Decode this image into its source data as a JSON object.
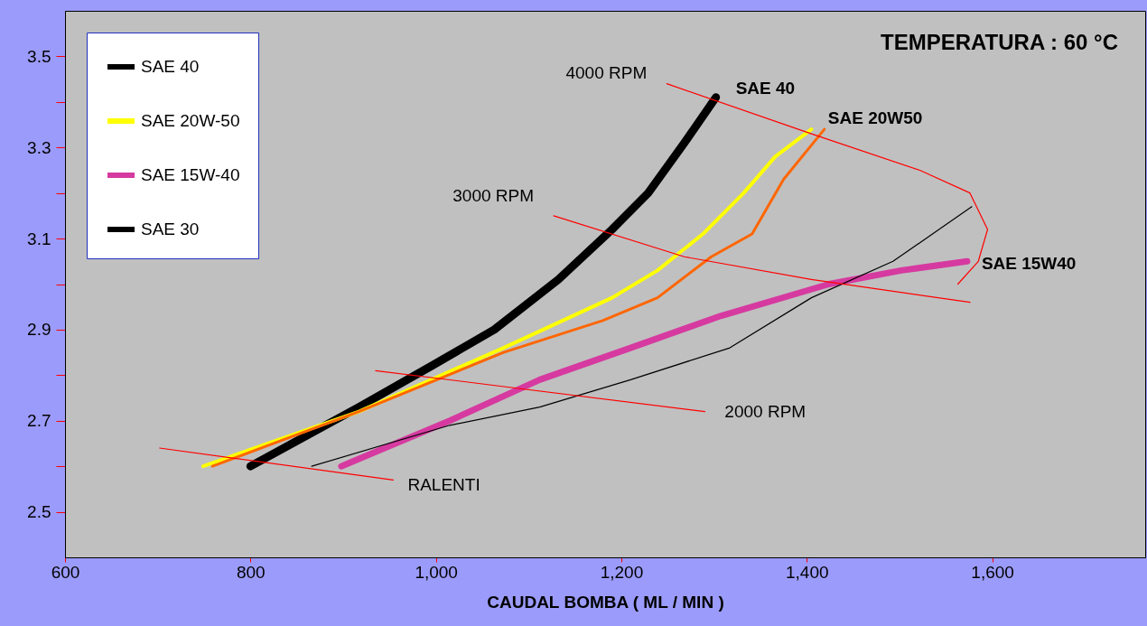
{
  "chart_data": {
    "type": "line",
    "title": "TEMPERATURA : 60 °C",
    "xlabel": "CAUDAL BOMBA ( ML / MIN )",
    "xlim": [
      600,
      1765
    ],
    "ylim": [
      2.4,
      3.6
    ],
    "xticks": [
      600,
      800,
      {
        "value": 1000,
        "label": "1,000"
      },
      {
        "value": 1200,
        "label": "1,200"
      },
      {
        "value": 1400,
        "label": "1,400"
      },
      {
        "value": 1600,
        "label": "1,600"
      }
    ],
    "yticks": [
      2.5,
      {
        "value": 2.6,
        "label": null
      },
      2.7,
      {
        "value": 2.8,
        "label": null
      },
      2.9,
      {
        "value": 3.0,
        "label": null
      },
      3.1,
      {
        "value": 3.2,
        "label": null
      },
      3.3,
      {
        "value": 3.4,
        "label": null
      },
      3.5
    ],
    "grid": false,
    "legend": "top left",
    "series": [
      {
        "name": "SAE 40",
        "color": "#000000",
        "x": [
          800,
          917,
          995,
          1063,
          1132,
          1190,
          1229,
          1268,
          1302
        ],
        "values": [
          2.6,
          2.73,
          2.82,
          2.9,
          3.01,
          3.12,
          3.2,
          3.31,
          3.41
        ]
      },
      {
        "name": "SAE 20W-50",
        "color": "#ffff00",
        "x": [
          749,
          917,
          1073,
          1190,
          1239,
          1288,
          1332,
          1366,
          1405
        ],
        "values": [
          2.6,
          2.72,
          2.86,
          2.97,
          3.03,
          3.11,
          3.2,
          3.28,
          3.34
        ]
      },
      {
        "color": "#ff6600",
        "x": [
          759,
          917,
          1073,
          1180,
          1239,
          1297,
          1341,
          1375,
          1419
        ],
        "values": [
          2.6,
          2.72,
          2.85,
          2.92,
          2.97,
          3.06,
          3.11,
          3.23,
          3.34
        ]
      },
      {
        "name": "SAE 15W-40",
        "color": "#d63aa0",
        "x": [
          898,
          1015,
          1112,
          1210,
          1307,
          1424,
          1502,
          1573
        ],
        "values": [
          2.6,
          2.7,
          2.79,
          2.86,
          2.93,
          3.0,
          3.03,
          3.05
        ]
      },
      {
        "name": "SAE 30",
        "color": "#000000",
        "x": [
          866,
          1015,
          1112,
          1210,
          1317,
          1405,
          1493,
          1578
        ],
        "values": [
          2.6,
          2.69,
          2.73,
          2.79,
          2.86,
          2.97,
          3.05,
          3.17
        ]
      },
      {
        "color": "#ff0000",
        "x": [
          702,
          954
        ],
        "values": [
          2.64,
          2.57
        ]
      },
      {
        "color": "#ff0000",
        "x": [
          935,
          1290
        ],
        "values": [
          2.81,
          2.72
        ]
      },
      {
        "color": "#ff0000",
        "x": [
          1127,
          1268,
          1405,
          1576
        ],
        "values": [
          3.15,
          3.06,
          3.01,
          2.96
        ]
      },
      {
        "color": "#ff0000",
        "x": [
          1249,
          1405,
          1522,
          1576,
          1595,
          1585,
          1563
        ],
        "values": [
          3.44,
          3.33,
          3.25,
          3.2,
          3.12,
          3.05,
          3.0
        ]
      }
    ],
    "annotations": [
      "SAE 40",
      "SAE 20W50",
      "SAE 15W40",
      "4000 RPM",
      "3000 RPM",
      "2000 RPM",
      "RALENTI"
    ]
  }
}
